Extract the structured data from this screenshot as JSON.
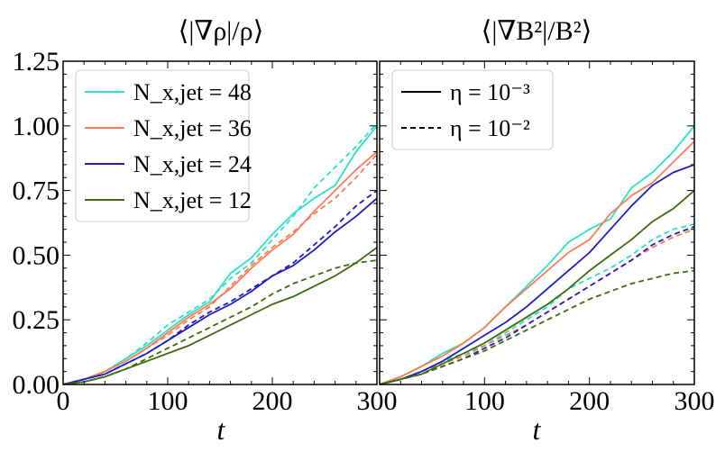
{
  "chart_data": [
    {
      "type": "line",
      "title": "⟨|∇ρ|/ρ⟩",
      "xlabel": "t",
      "ylabel": "",
      "xlim": [
        0,
        300
      ],
      "ylim": [
        0,
        1.25
      ],
      "xticks": [
        "0",
        "100",
        "200",
        "300"
      ],
      "yticks": [
        "0.00",
        "0.25",
        "0.50",
        "0.75",
        "1.00",
        "1.25"
      ],
      "legend": {
        "placement": "top-left",
        "entries": [
          {
            "label": "N_x,jet = 48",
            "color": "#2ee0c6",
            "style": "solid"
          },
          {
            "label": "N_x,jet = 36",
            "color": "#ff7a56",
            "style": "solid"
          },
          {
            "label": "N_x,jet = 24",
            "color": "#1f1fbf",
            "style": "solid"
          },
          {
            "label": "N_x,jet = 12",
            "color": "#3d6b0e",
            "style": "solid"
          }
        ]
      },
      "x": [
        0,
        20,
        40,
        60,
        80,
        100,
        120,
        140,
        160,
        180,
        200,
        220,
        240,
        260,
        280,
        300
      ],
      "series": [
        {
          "color": "#2ee0c6",
          "style": "solid",
          "values": [
            0,
            0.02,
            0.05,
            0.1,
            0.15,
            0.21,
            0.27,
            0.32,
            0.43,
            0.49,
            0.58,
            0.66,
            0.72,
            0.77,
            0.9,
            1.0
          ]
        },
        {
          "color": "#2ee0c6",
          "style": "dashed",
          "values": [
            0,
            0.02,
            0.05,
            0.1,
            0.16,
            0.23,
            0.28,
            0.33,
            0.41,
            0.47,
            0.56,
            0.65,
            0.76,
            0.84,
            0.92,
            1.01
          ]
        },
        {
          "color": "#ff7a56",
          "style": "solid",
          "values": [
            0,
            0.02,
            0.05,
            0.09,
            0.14,
            0.2,
            0.26,
            0.31,
            0.37,
            0.45,
            0.52,
            0.58,
            0.67,
            0.75,
            0.83,
            0.9
          ]
        },
        {
          "color": "#ff7a56",
          "style": "dashed",
          "values": [
            0,
            0.02,
            0.05,
            0.09,
            0.14,
            0.19,
            0.25,
            0.3,
            0.38,
            0.46,
            0.53,
            0.59,
            0.66,
            0.72,
            0.8,
            0.89
          ]
        },
        {
          "color": "#1f1fbf",
          "style": "solid",
          "values": [
            0,
            0.02,
            0.04,
            0.08,
            0.12,
            0.17,
            0.22,
            0.27,
            0.31,
            0.36,
            0.42,
            0.46,
            0.52,
            0.59,
            0.65,
            0.72
          ]
        },
        {
          "color": "#1f1fbf",
          "style": "dashed",
          "values": [
            0,
            0.02,
            0.04,
            0.08,
            0.12,
            0.17,
            0.23,
            0.28,
            0.32,
            0.37,
            0.42,
            0.47,
            0.54,
            0.61,
            0.69,
            0.75
          ]
        },
        {
          "color": "#3d6b0e",
          "style": "solid",
          "values": [
            0,
            0.01,
            0.03,
            0.06,
            0.09,
            0.12,
            0.15,
            0.19,
            0.23,
            0.27,
            0.31,
            0.34,
            0.38,
            0.42,
            0.47,
            0.53
          ]
        },
        {
          "color": "#3d6b0e",
          "style": "dashed",
          "values": [
            0,
            0.01,
            0.03,
            0.06,
            0.1,
            0.14,
            0.18,
            0.22,
            0.26,
            0.3,
            0.35,
            0.39,
            0.42,
            0.45,
            0.47,
            0.48
          ]
        }
      ]
    },
    {
      "type": "line",
      "title": "⟨|∇B²|/B²⟩",
      "xlabel": "t",
      "ylabel": "",
      "xlim": [
        0,
        300
      ],
      "ylim": [
        0,
        1.25
      ],
      "xticks": [
        "100",
        "200",
        "300"
      ],
      "yticks": [],
      "legend": {
        "placement": "top-left",
        "entries": [
          {
            "label": "η = 10⁻³",
            "color": "#000000",
            "style": "solid"
          },
          {
            "label": "η = 10⁻²",
            "color": "#000000",
            "style": "dashed"
          }
        ]
      },
      "x": [
        0,
        20,
        40,
        60,
        80,
        100,
        120,
        140,
        160,
        180,
        200,
        220,
        240,
        260,
        280,
        300
      ],
      "series": [
        {
          "color": "#2ee0c6",
          "style": "solid",
          "values": [
            0,
            0.03,
            0.07,
            0.12,
            0.16,
            0.22,
            0.3,
            0.38,
            0.46,
            0.55,
            0.6,
            0.64,
            0.76,
            0.82,
            0.9,
            1.0
          ]
        },
        {
          "color": "#2ee0c6",
          "style": "dashed",
          "values": [
            0,
            0.02,
            0.05,
            0.09,
            0.12,
            0.15,
            0.2,
            0.25,
            0.3,
            0.37,
            0.41,
            0.45,
            0.5,
            0.56,
            0.6,
            0.62
          ]
        },
        {
          "color": "#ff7a56",
          "style": "solid",
          "values": [
            0,
            0.03,
            0.07,
            0.11,
            0.16,
            0.22,
            0.3,
            0.37,
            0.44,
            0.51,
            0.56,
            0.66,
            0.73,
            0.78,
            0.86,
            0.94
          ]
        },
        {
          "color": "#ff7a56",
          "style": "dashed",
          "values": [
            0,
            0.02,
            0.05,
            0.08,
            0.11,
            0.15,
            0.19,
            0.23,
            0.28,
            0.33,
            0.38,
            0.43,
            0.48,
            0.53,
            0.57,
            0.6
          ]
        },
        {
          "color": "#1f1fbf",
          "style": "solid",
          "values": [
            0,
            0.02,
            0.05,
            0.09,
            0.14,
            0.19,
            0.24,
            0.3,
            0.37,
            0.44,
            0.51,
            0.6,
            0.69,
            0.77,
            0.82,
            0.85
          ]
        },
        {
          "color": "#1f1fbf",
          "style": "dashed",
          "values": [
            0,
            0.02,
            0.04,
            0.07,
            0.1,
            0.14,
            0.18,
            0.23,
            0.28,
            0.33,
            0.38,
            0.43,
            0.48,
            0.54,
            0.58,
            0.61
          ]
        },
        {
          "color": "#3d6b0e",
          "style": "solid",
          "values": [
            0,
            0.02,
            0.04,
            0.08,
            0.12,
            0.16,
            0.21,
            0.26,
            0.31,
            0.37,
            0.44,
            0.5,
            0.56,
            0.63,
            0.68,
            0.75
          ]
        },
        {
          "color": "#3d6b0e",
          "style": "dashed",
          "values": [
            0,
            0.02,
            0.04,
            0.07,
            0.1,
            0.13,
            0.17,
            0.21,
            0.25,
            0.29,
            0.33,
            0.36,
            0.39,
            0.41,
            0.43,
            0.44
          ]
        }
      ]
    }
  ]
}
